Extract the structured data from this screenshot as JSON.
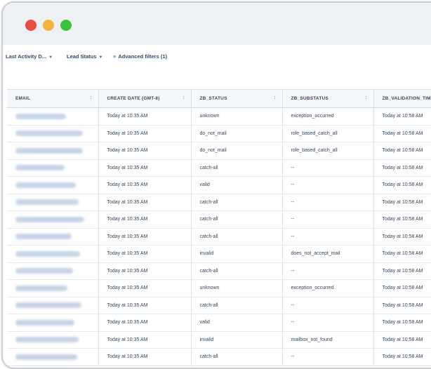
{
  "window": {
    "controls": [
      "close",
      "minimize",
      "maximize"
    ]
  },
  "filters": [
    {
      "label": "Last Activity D...",
      "icon": "chevron-down-icon"
    },
    {
      "label": "Lead Status",
      "icon": "chevron-down-icon"
    },
    {
      "label": "Advanced filters (1)",
      "icon": "filter-icon"
    }
  ],
  "table": {
    "columns": [
      "EMAIL",
      "CREATE DATE (GMT-8)",
      "ZB_STATUS",
      "ZB_SUBSTATUS",
      "ZB_VALIDATION_TIME"
    ],
    "rows": [
      {
        "email_width": 72,
        "create": "Today at 10:35 AM",
        "status": "unknown",
        "substatus": "exception_occurred",
        "time": "Today at 10:58 AM"
      },
      {
        "email_width": 96,
        "create": "Today at 10:35 AM",
        "status": "do_not_mail",
        "substatus": "role_based_catch_all",
        "time": "Today at 10:58 AM"
      },
      {
        "email_width": 96,
        "create": "Today at 10:35 AM",
        "status": "do_not_mail",
        "substatus": "role_based_catch_all",
        "time": "Today at 10:58 AM"
      },
      {
        "email_width": 70,
        "create": "Today at 10:35 AM",
        "status": "catch-all",
        "substatus": "--",
        "time": "Today at 10:58 AM"
      },
      {
        "email_width": 86,
        "create": "Today at 10:35 AM",
        "status": "valid",
        "substatus": "--",
        "time": "Today at 10:58 AM"
      },
      {
        "email_width": 90,
        "create": "Today at 10:35 AM",
        "status": "catch-all",
        "substatus": "--",
        "time": "Today at 10:58 AM"
      },
      {
        "email_width": 98,
        "create": "Today at 10:35 AM",
        "status": "catch-all",
        "substatus": "--",
        "time": "Today at 10:58 AM"
      },
      {
        "email_width": 80,
        "create": "Today at 10:35 AM",
        "status": "catch-all",
        "substatus": "--",
        "time": "Today at 10:58 AM"
      },
      {
        "email_width": 92,
        "create": "Today at 10:35 AM",
        "status": "invalid",
        "substatus": "does_not_accept_mail",
        "time": "Today at 10:58 AM"
      },
      {
        "email_width": 82,
        "create": "Today at 10:35 AM",
        "status": "catch-all",
        "substatus": "--",
        "time": "Today at 10:58 AM"
      },
      {
        "email_width": 74,
        "create": "Today at 10:35 AM",
        "status": "unknown",
        "substatus": "exception_occurred",
        "time": "Today at 10:58 AM"
      },
      {
        "email_width": 94,
        "create": "Today at 10:35 AM",
        "status": "catch-all",
        "substatus": "--",
        "time": "Today at 10:58 AM"
      },
      {
        "email_width": 84,
        "create": "Today at 10:35 AM",
        "status": "valid",
        "substatus": "--",
        "time": "Today at 10:58 AM"
      },
      {
        "email_width": 90,
        "create": "Today at 10:35 AM",
        "status": "invalid",
        "substatus": "mailbox_not_found",
        "time": "Today at 10:58 AM"
      },
      {
        "email_width": 88,
        "create": "Today at 10:35 AM",
        "status": "catch-all",
        "substatus": "--",
        "time": "Today at 10:58 AM"
      }
    ]
  }
}
